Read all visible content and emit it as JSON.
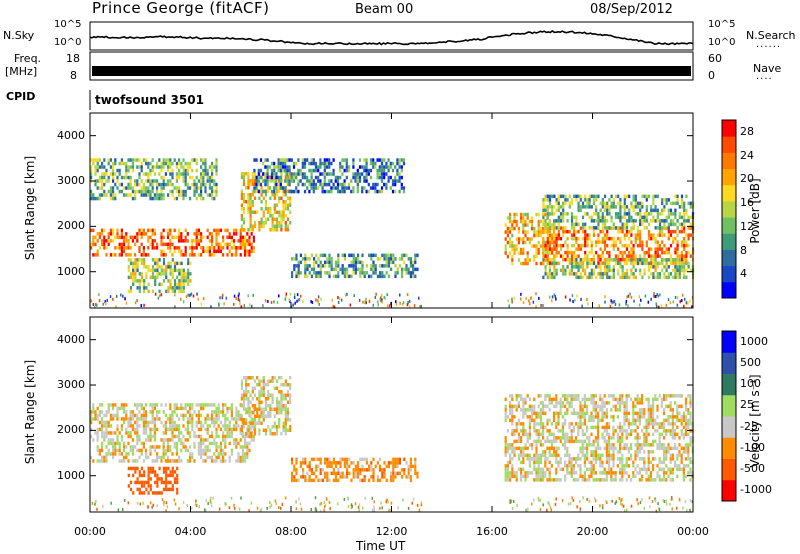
{
  "header": {
    "station": "Prince George (fitACF)",
    "beam": "Beam 00",
    "date": "08/Sep/2012"
  },
  "strips": {
    "nsky_label": "N.Sky",
    "nsky_ticks": [
      "10^5",
      "10^0"
    ],
    "nsearch_label": "N.Search",
    "nsearch_ticks": [
      "10^5",
      "10^0"
    ],
    "freq_label": "Freq.",
    "freq_unit": "[MHz]",
    "freq_ticks": [
      "18",
      "8"
    ],
    "nave_label": "Nave",
    "nave_ticks": [
      "60",
      "0"
    ],
    "cpid_label": "CPID",
    "cpid_value": "twofsound 3501"
  },
  "colors": {
    "power_scale": [
      "#0000ff",
      "#1a47c8",
      "#2f6da0",
      "#3f9b7a",
      "#6fbf63",
      "#b8d643",
      "#ffd820",
      "#ffa400",
      "#ff7800",
      "#ff4a00",
      "#ff0000"
    ],
    "velocity_scale": [
      "#ff0000",
      "#ff5a00",
      "#ff8c00",
      "#ffb020",
      "#c8c8c8",
      "#c8c8c8",
      "#9fdc60",
      "#4aa24a",
      "#2e7a60",
      "#2f50a8",
      "#0000ff"
    ]
  },
  "chart_data": [
    {
      "type": "heatmap",
      "panel": "power",
      "title": "",
      "xlabel": "Time UT",
      "ylabel": "Slant Range [km]",
      "xlim_hours": [
        0,
        24
      ],
      "ylim_km": [
        200,
        4500
      ],
      "x_ticks": [
        "00:00",
        "04:00",
        "08:00",
        "12:00",
        "16:00",
        "20:00",
        "00:00"
      ],
      "y_ticks": [
        1000,
        2000,
        3000,
        4000
      ],
      "colorbar": {
        "label": "Power [dB]",
        "ticks": [
          4,
          8,
          12,
          16,
          20,
          24,
          28
        ],
        "range": [
          0,
          30
        ]
      },
      "echo_bands": [
        {
          "t0": 0.0,
          "t1": 6.5,
          "r0": 1350,
          "r1": 1950,
          "level": 24
        },
        {
          "t0": 6.0,
          "t1": 8.0,
          "r0": 1900,
          "r1": 3200,
          "level": 18
        },
        {
          "t0": 0.0,
          "t1": 5.0,
          "r0": 2600,
          "r1": 3500,
          "level": 12
        },
        {
          "t0": 1.5,
          "t1": 4.0,
          "r0": 600,
          "r1": 1300,
          "level": 14
        },
        {
          "t0": 8.0,
          "t1": 13.0,
          "r0": 900,
          "r1": 1400,
          "level": 10
        },
        {
          "t0": 6.5,
          "t1": 12.5,
          "r0": 2800,
          "r1": 3500,
          "level": 8
        },
        {
          "t0": 16.5,
          "t1": 18.5,
          "r0": 1200,
          "r1": 2300,
          "level": 20
        },
        {
          "t0": 18.0,
          "t1": 24.0,
          "r0": 1200,
          "r1": 2000,
          "level": 22
        },
        {
          "t0": 18.0,
          "t1": 24.0,
          "r0": 2000,
          "r1": 2700,
          "level": 12
        },
        {
          "t0": 18.0,
          "t1": 24.0,
          "r0": 900,
          "r1": 1300,
          "level": 14
        }
      ]
    },
    {
      "type": "heatmap",
      "panel": "velocity",
      "title": "",
      "xlabel": "Time UT",
      "ylabel": "Slant Range [km]",
      "xlim_hours": [
        0,
        24
      ],
      "ylim_km": [
        200,
        4500
      ],
      "x_ticks": [
        "00:00",
        "04:00",
        "08:00",
        "12:00",
        "16:00",
        "20:00",
        "00:00"
      ],
      "y_ticks": [
        1000,
        2000,
        3000,
        4000
      ],
      "colorbar": {
        "label": "Velocity [m s⁻¹]",
        "ticks": [
          1000,
          500,
          100,
          25,
          -25,
          -100,
          -500,
          -1000
        ]
      },
      "echo_bands": [
        {
          "t0": 0.0,
          "t1": 6.5,
          "r0": 1350,
          "r1": 2600,
          "level": 0
        },
        {
          "t0": 6.0,
          "t1": 8.0,
          "r0": 1900,
          "r1": 3200,
          "level": 0
        },
        {
          "t0": 1.5,
          "t1": 3.5,
          "r0": 600,
          "r1": 1200,
          "level": -300
        },
        {
          "t0": 8.0,
          "t1": 13.0,
          "r0": 900,
          "r1": 1400,
          "level": -60
        },
        {
          "t0": 16.5,
          "t1": 24.0,
          "r0": 900,
          "r1": 2800,
          "level": 0
        }
      ]
    }
  ]
}
